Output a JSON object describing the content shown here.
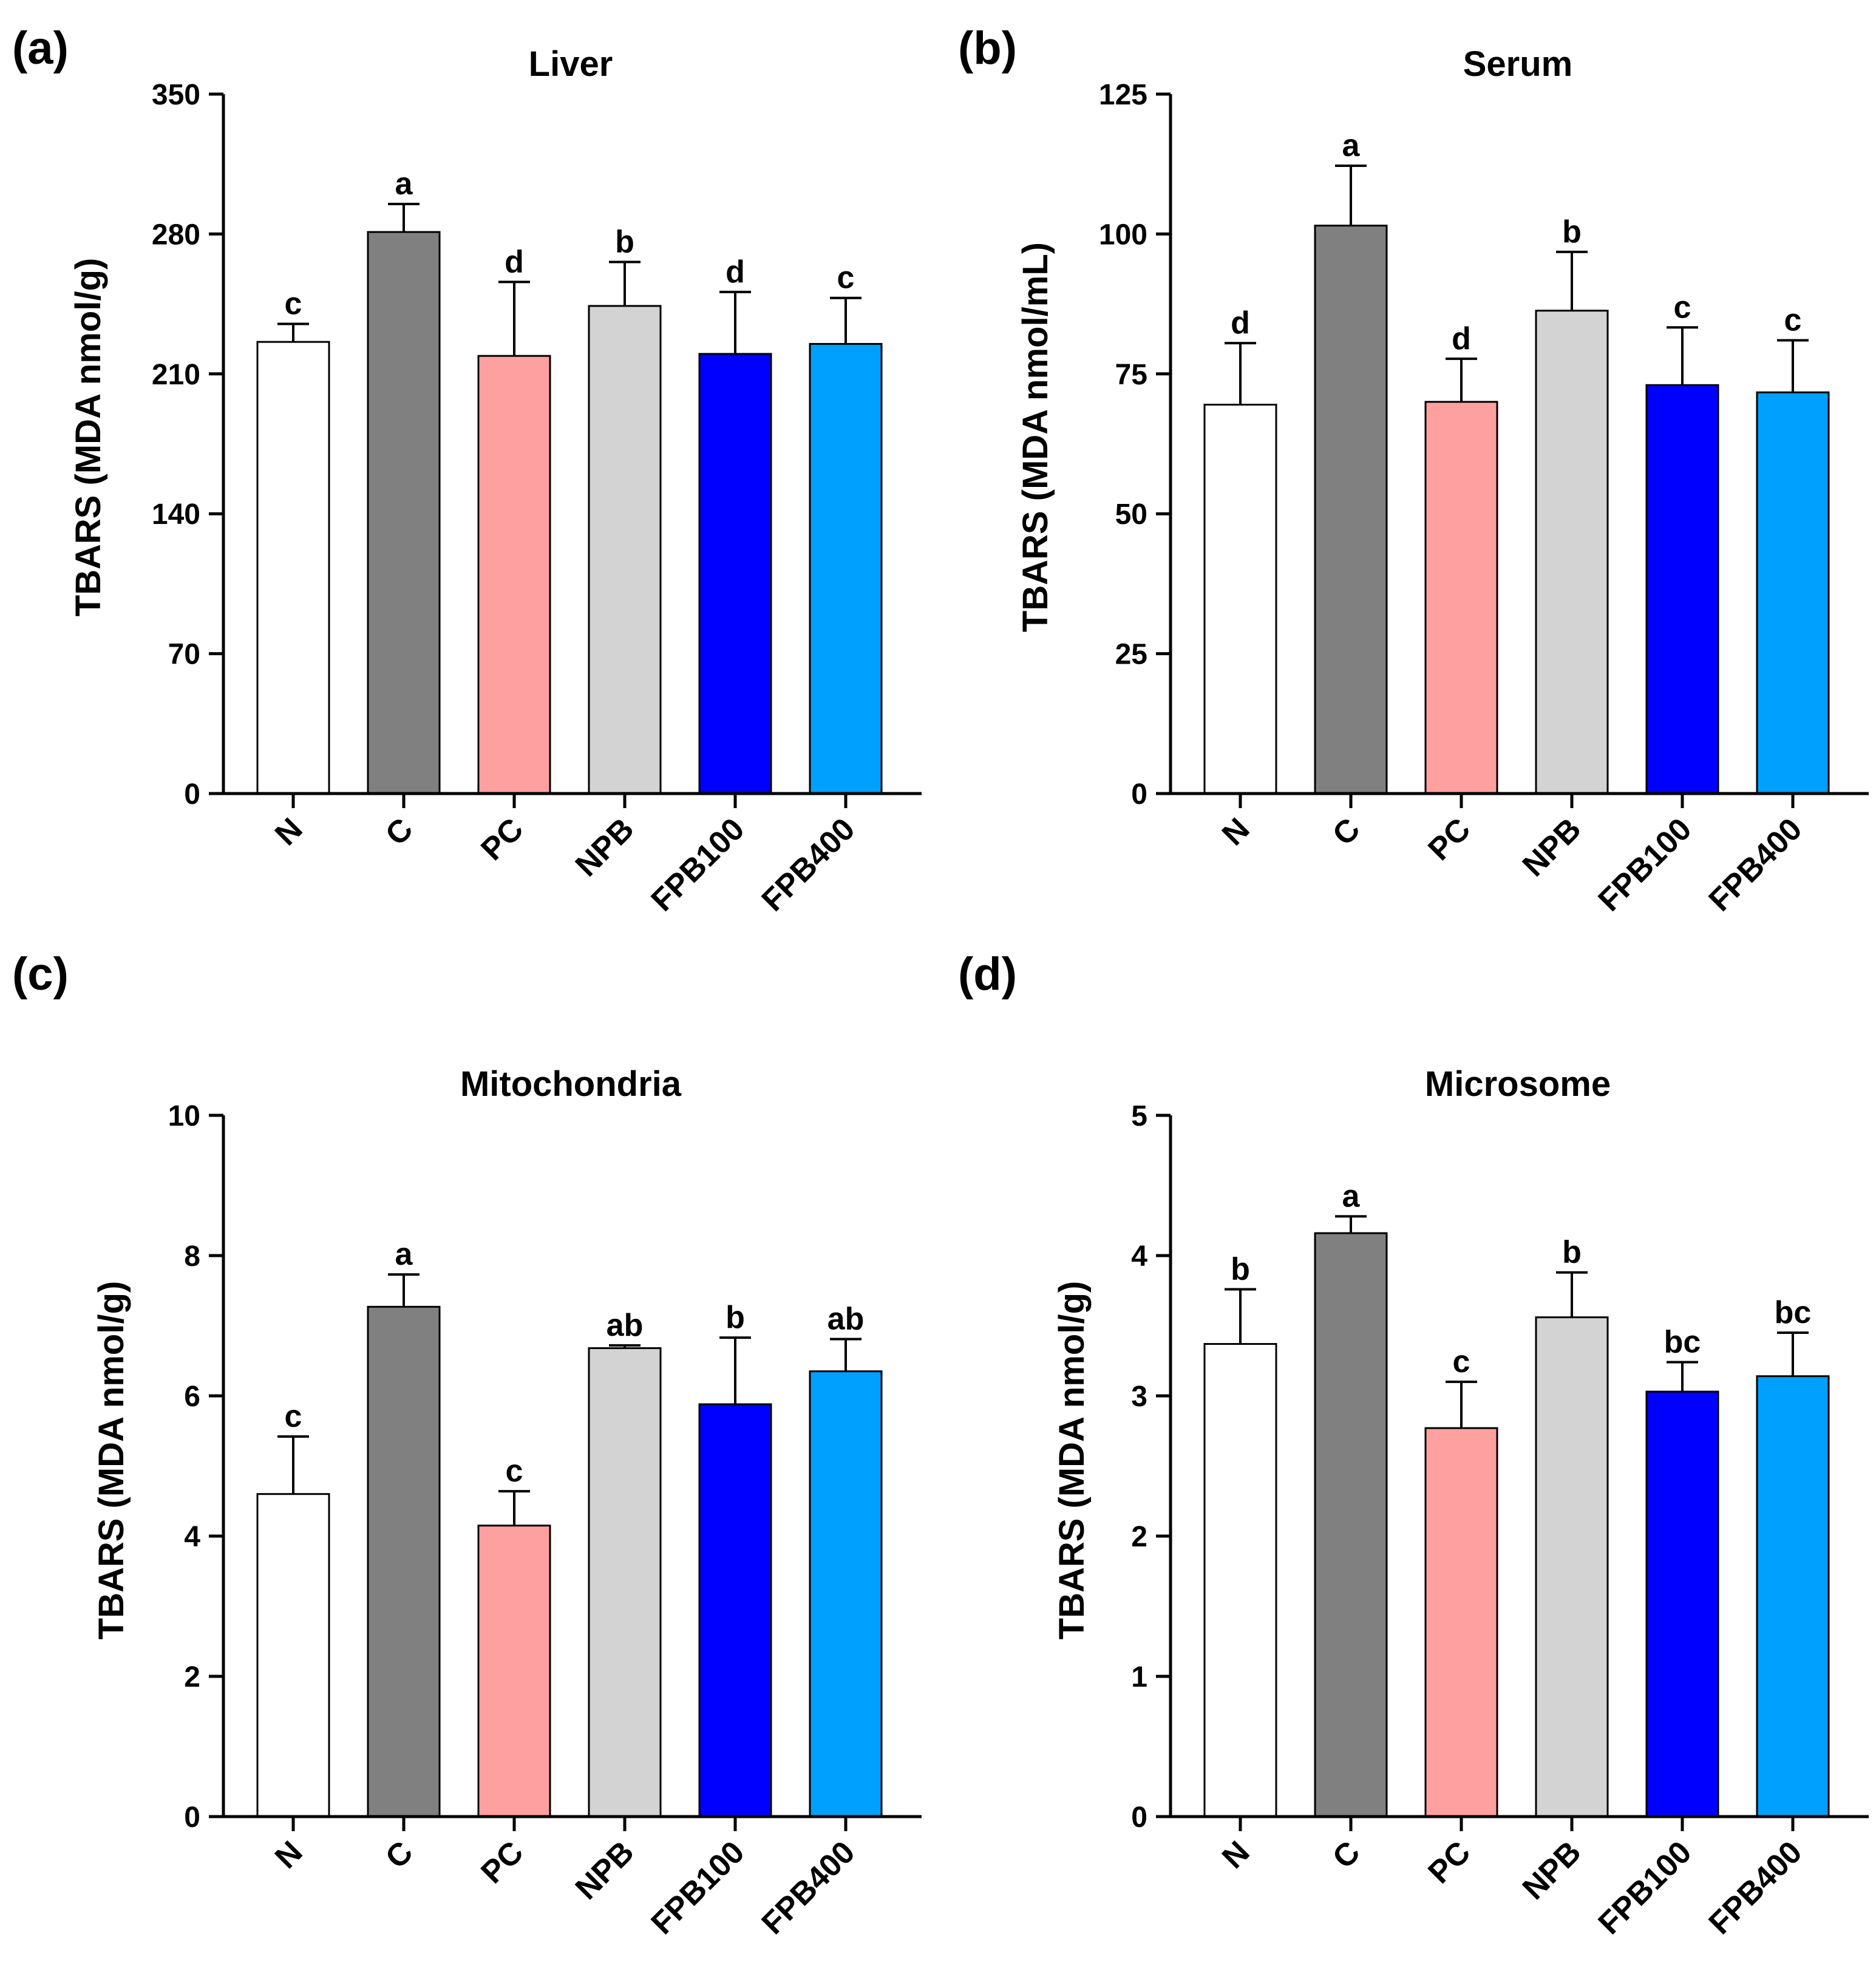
{
  "chart_data": [
    {
      "type": "bar",
      "panel_label": "(a)",
      "title": "Liver",
      "xlabel": "",
      "ylabel": "TBARS (MDA nmol/g)",
      "ylim": [
        0,
        350
      ],
      "yticks": [
        0,
        70,
        140,
        210,
        280,
        350
      ],
      "categories": [
        "N",
        "C",
        "PC",
        "NPB",
        "FPB100",
        "FPB400"
      ],
      "values": [
        226,
        281,
        219,
        244,
        220,
        225
      ],
      "errors": [
        9,
        14,
        37,
        22,
        31,
        23
      ],
      "significance": [
        "c",
        "a",
        "d",
        "b",
        "d",
        "c"
      ]
    },
    {
      "type": "bar",
      "panel_label": "(b)",
      "title": "Serum",
      "xlabel": "",
      "ylabel": "TBARS (MDA nmol/mL)",
      "ylim": [
        0,
        125
      ],
      "yticks": [
        0,
        25,
        50,
        75,
        100,
        125
      ],
      "categories": [
        "N",
        "C",
        "PC",
        "NPB",
        "FPB100",
        "FPB400"
      ],
      "values": [
        69.5,
        101.5,
        70.0,
        86.3,
        73.0,
        71.7
      ],
      "errors": [
        11.0,
        10.7,
        7.7,
        10.5,
        10.3,
        9.3
      ],
      "significance": [
        "d",
        "a",
        "d",
        "b",
        "c",
        "c"
      ]
    },
    {
      "type": "bar",
      "panel_label": "(c)",
      "title": "Mitochondria",
      "xlabel": "",
      "ylabel": "TBARS (MDA nmol/g)",
      "ylim": [
        0,
        10
      ],
      "yticks": [
        0,
        2,
        4,
        6,
        8,
        10
      ],
      "categories": [
        "N",
        "C",
        "PC",
        "NPB",
        "FPB100",
        "FPB400"
      ],
      "values": [
        4.6,
        7.27,
        4.15,
        6.68,
        5.88,
        6.35
      ],
      "errors": [
        0.82,
        0.46,
        0.49,
        0.04,
        0.95,
        0.46
      ],
      "significance": [
        "c",
        "a",
        "c",
        "ab",
        "b",
        "ab"
      ]
    },
    {
      "type": "bar",
      "panel_label": "(d)",
      "title": "Microsome",
      "xlabel": "",
      "ylabel": "TBARS (MDA nmol/g)",
      "ylim": [
        0,
        5
      ],
      "yticks": [
        0,
        1,
        2,
        3,
        4,
        5
      ],
      "categories": [
        "N",
        "C",
        "PC",
        "NPB",
        "FPB100",
        "FPB400"
      ],
      "values": [
        3.37,
        4.16,
        2.77,
        3.56,
        3.03,
        3.14
      ],
      "errors": [
        0.39,
        0.12,
        0.33,
        0.32,
        0.21,
        0.31
      ],
      "significance": [
        "b",
        "a",
        "c",
        "b",
        "bc",
        "bc"
      ]
    }
  ],
  "colors": {
    "bars": [
      "#ffffff",
      "#808080",
      "#ffa0a0",
      "#d3d3d3",
      "#0000ff",
      "#00a0ff"
    ],
    "stroke": "#000000"
  }
}
